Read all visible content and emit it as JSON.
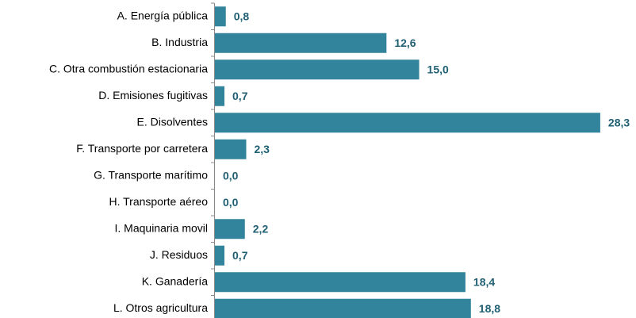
{
  "chart_data": {
    "type": "bar",
    "orientation": "horizontal",
    "categories": [
      "A. Energía pública",
      "B. Industria",
      "C. Otra combustión estacionaria",
      "D. Emisiones fugitivas",
      "E. Disolventes",
      "F. Transporte por carretera",
      "G. Transporte marítimo",
      "H. Transporte aéreo",
      "I. Maquinaria movil",
      "J. Residuos",
      "K. Ganadería",
      "L. Otros agricultura"
    ],
    "values": [
      0.8,
      12.6,
      15.0,
      0.7,
      28.3,
      2.3,
      0.0,
      0.0,
      2.2,
      0.7,
      18.4,
      18.8
    ],
    "value_labels": [
      "0,8",
      "12,6",
      "15,0",
      "0,7",
      "28,3",
      "2,3",
      "0,0",
      "0,0",
      "2,2",
      "0,7",
      "18,4",
      "18,8"
    ],
    "color": "#31849b"
  }
}
